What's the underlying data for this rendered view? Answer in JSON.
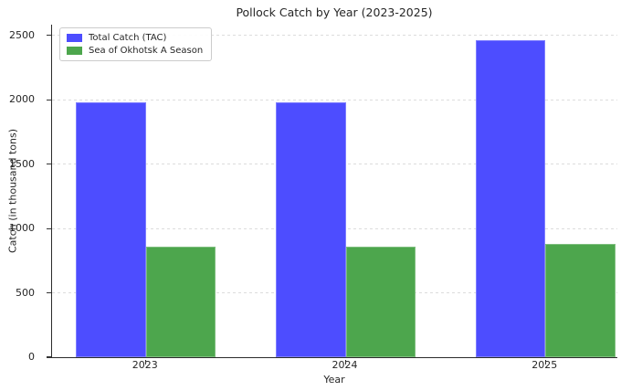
{
  "chart_data": {
    "type": "bar",
    "title": "Pollock Catch by Year (2023-2025)",
    "xlabel": "Year",
    "ylabel": "Catch (in thousand tons)",
    "categories": [
      "2023",
      "2024",
      "2025"
    ],
    "series": [
      {
        "name": "Total Catch (TAC)",
        "values": [
          1980,
          1980,
          2460
        ],
        "color": "#4d4dff"
      },
      {
        "name": "Sea of Okhotsk A Season",
        "values": [
          860,
          860,
          880
        ],
        "color": "#4da64d"
      }
    ],
    "yticks": [
      0,
      500,
      1000,
      1500,
      2000,
      2500
    ],
    "ylim": [
      0,
      2584
    ],
    "xlim": [
      -0.47,
      2.36
    ],
    "bar_width": 0.35,
    "legend_position": "upper left",
    "grid": "dashed horizontal",
    "colors": {
      "grid": "#dcdcdc",
      "spine": "#2b2b2b",
      "text": "#262626",
      "tick": "#333333",
      "legend_border": "#cccccc",
      "background": "#ffffff"
    }
  }
}
